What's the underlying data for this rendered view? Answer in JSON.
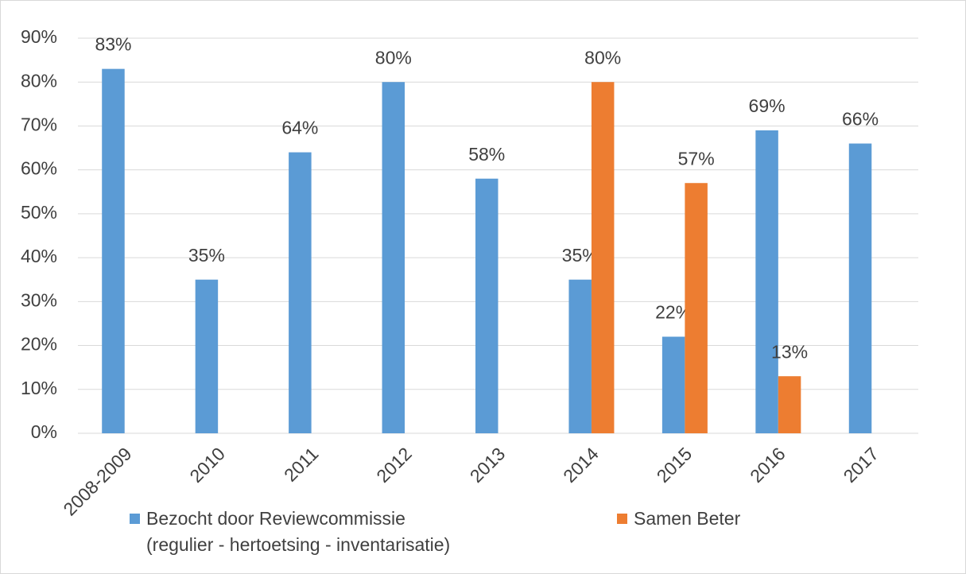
{
  "chart_data": {
    "type": "bar",
    "categories": [
      "2008-2009",
      "2010",
      "2011",
      "2012",
      "2013",
      "2014",
      "2015",
      "2016",
      "2017"
    ],
    "series": [
      {
        "name": "Bezocht door Reviewcommissie\n(regulier - hertoetsing - inventarisatie)",
        "color": "#5b9bd5",
        "values": [
          83,
          35,
          64,
          80,
          58,
          35,
          22,
          69,
          66
        ],
        "value_labels": [
          "83%",
          "35%",
          "64%",
          "80%",
          "58%",
          "35%",
          "22%",
          "69%",
          "66%"
        ]
      },
      {
        "name": "Samen Beter",
        "color": "#ed7d31",
        "values": [
          null,
          null,
          null,
          null,
          null,
          80,
          57,
          13,
          null
        ],
        "value_labels": [
          null,
          null,
          null,
          null,
          null,
          "80%",
          "57%",
          "13%",
          null
        ]
      }
    ],
    "ylim": [
      0,
      90
    ],
    "yticks": [
      {
        "value": 0,
        "label": "0%"
      },
      {
        "value": 10,
        "label": "10%"
      },
      {
        "value": 20,
        "label": "20%"
      },
      {
        "value": 30,
        "label": "30%"
      },
      {
        "value": 40,
        "label": "40%"
      },
      {
        "value": 50,
        "label": "50%"
      },
      {
        "value": 60,
        "label": "60%"
      },
      {
        "value": 70,
        "label": "70%"
      },
      {
        "value": 80,
        "label": "80%"
      },
      {
        "value": 90,
        "label": "90%"
      }
    ],
    "grid": true
  }
}
